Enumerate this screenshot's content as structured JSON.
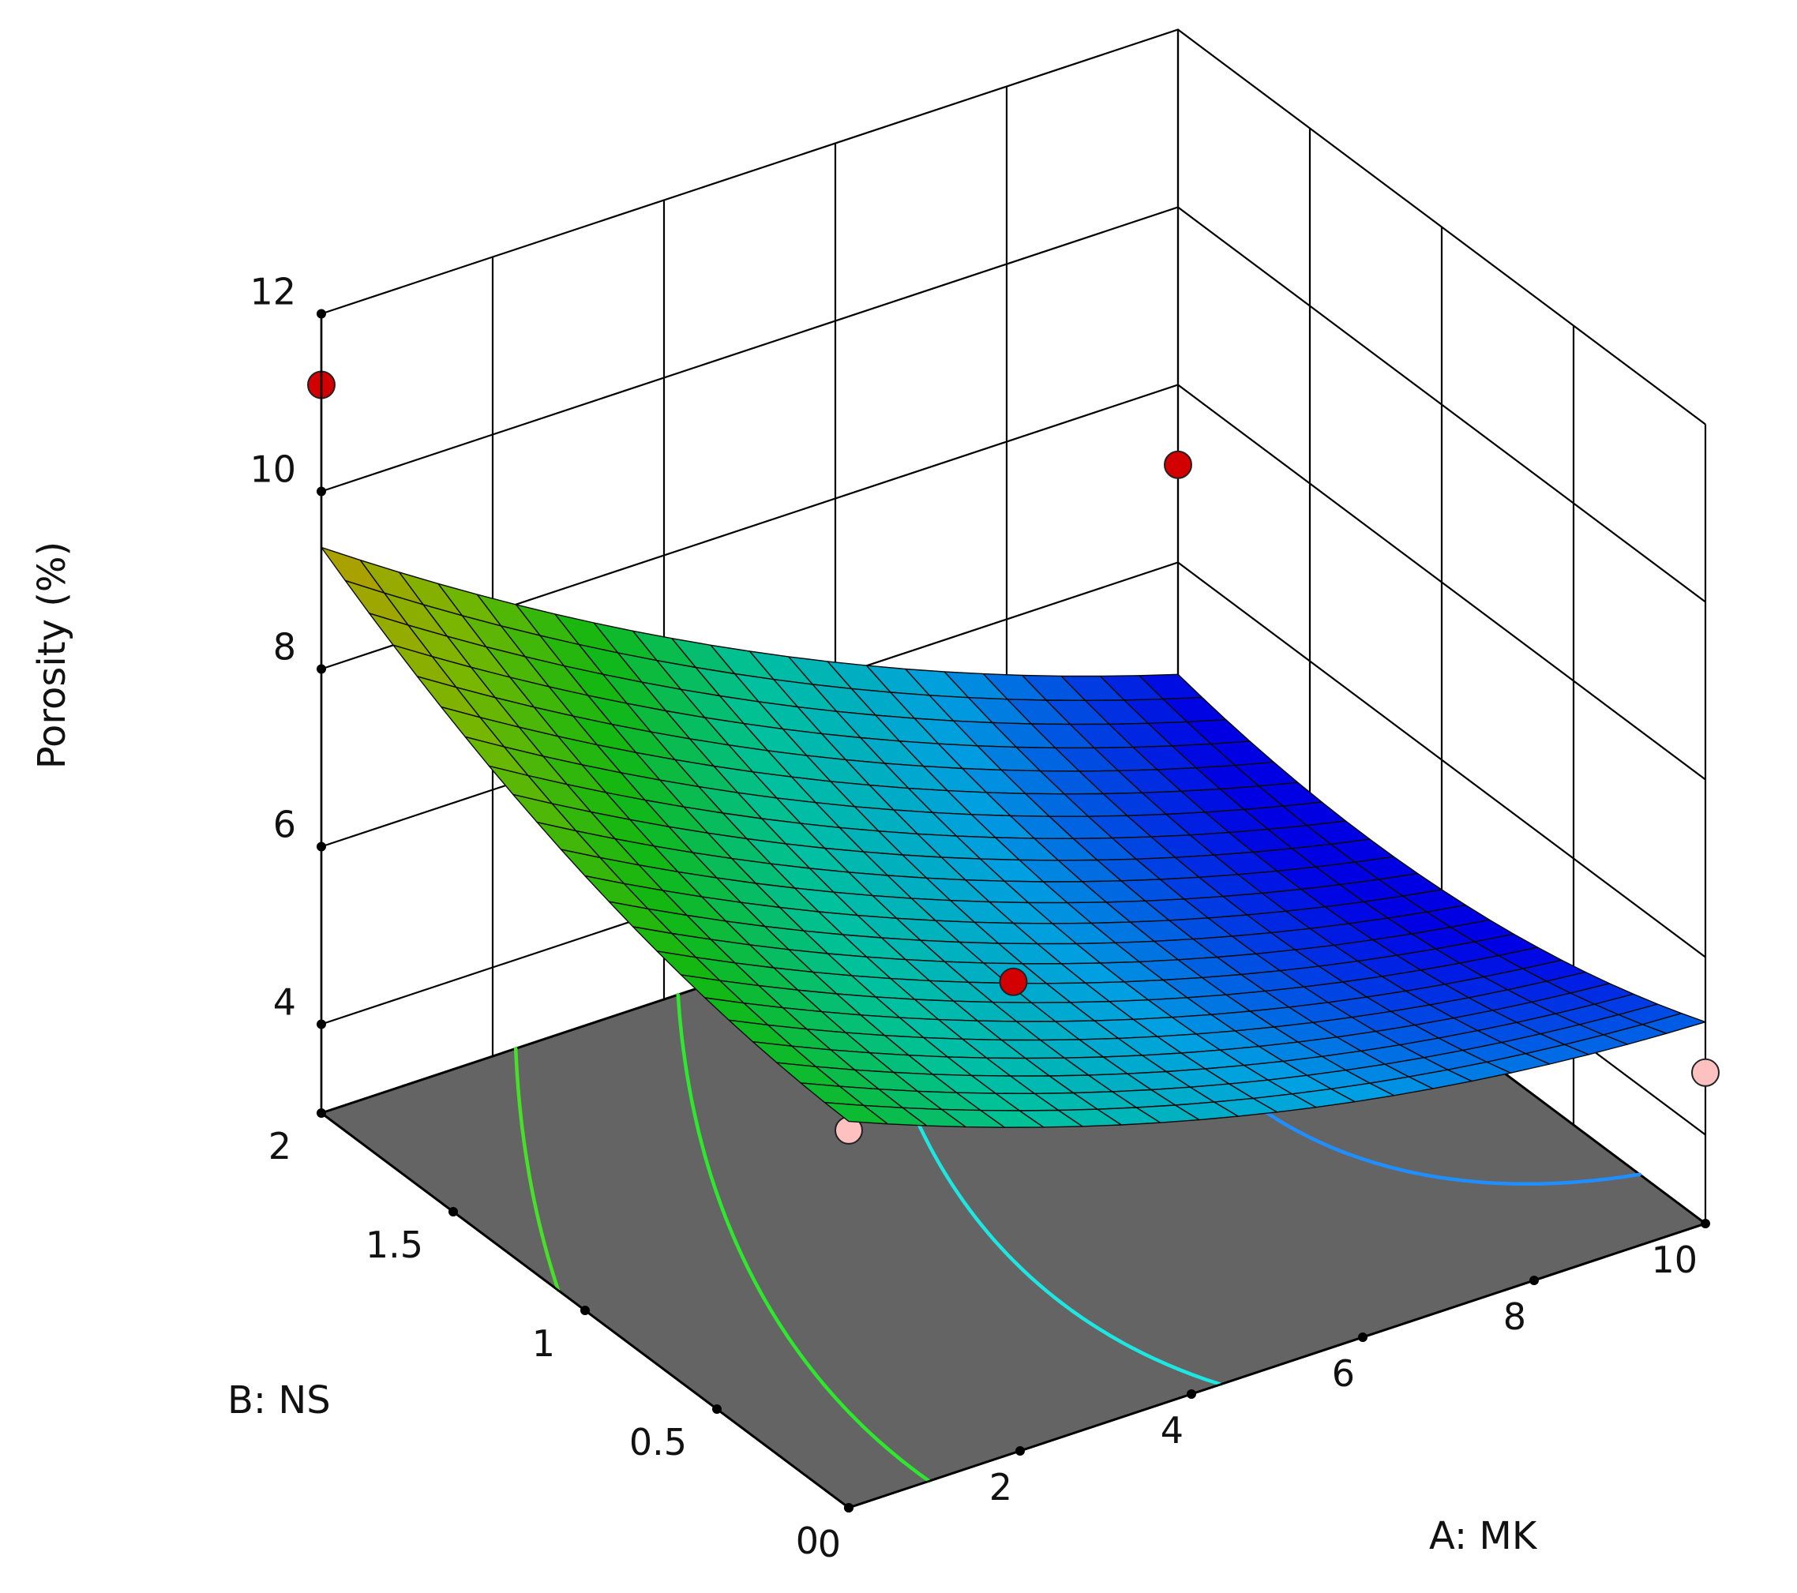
{
  "chart_data": {
    "type": "surface3d",
    "title": "",
    "xlabel": "A: MK",
    "ylabel": "B: NS",
    "zlabel": "Porosity (%)",
    "x_range": [
      0,
      10
    ],
    "y_range": [
      0,
      2
    ],
    "z_range": [
      4,
      12
    ],
    "x_ticks": [
      "0",
      "2",
      "4",
      "6",
      "8",
      "10"
    ],
    "y_ticks": [
      "0",
      "0.5",
      "1",
      "1.5",
      "2"
    ],
    "z_ticks": [
      "4",
      "6",
      "8",
      "10",
      "12"
    ],
    "grid": true,
    "floor_color": "#646464",
    "contour_levels": [
      5.0,
      6.0,
      7.0,
      8.0,
      9.5
    ],
    "contour_colors": [
      "#1f8fff",
      "#1ee6e0",
      "#2ee82e",
      "#46e028",
      "#ffc81e"
    ],
    "design_points": [
      {
        "x": 0,
        "y": 2,
        "z": 11.2,
        "above_surface": true
      },
      {
        "x": 0,
        "y": 0,
        "z": 7.25,
        "above_surface": false
      },
      {
        "x": 10,
        "y": 2,
        "z": 7.1,
        "above_surface": true
      },
      {
        "x": 5,
        "y": 1,
        "z": 5.1,
        "above_surface": true
      },
      {
        "x": 10,
        "y": 0,
        "z": 4.7,
        "above_surface": false
      }
    ],
    "point_colors": {
      "above": "#d20000",
      "below": "#ffc0c0"
    },
    "colormap": [
      "#0000ff",
      "#00b4ff",
      "#00dcb4",
      "#14d214",
      "#8cd200",
      "#d2b400",
      "#dc5000",
      "#c81400"
    ]
  }
}
